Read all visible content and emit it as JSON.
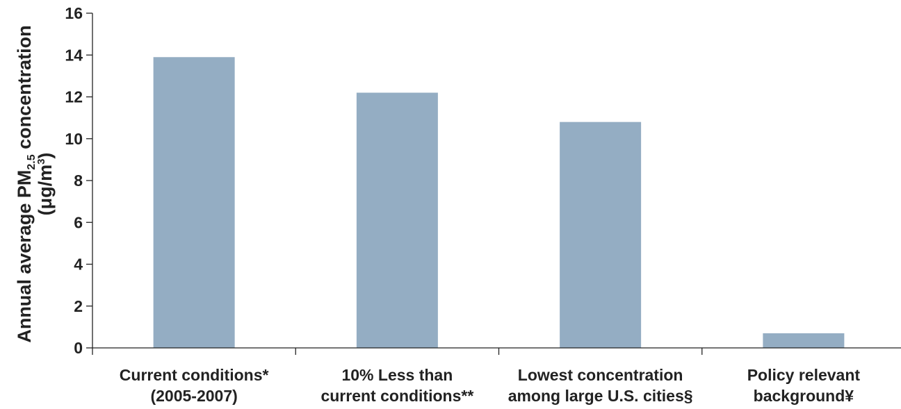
{
  "chart_data": {
    "type": "bar",
    "categories": [
      [
        "Current conditions*",
        "(2005-2007)"
      ],
      [
        "10% Less than",
        "current conditions**"
      ],
      [
        "Lowest concentration",
        "among large U.S. cities§"
      ],
      [
        "Policy relevant",
        "background¥"
      ]
    ],
    "values": [
      13.9,
      12.2,
      10.8,
      0.7
    ],
    "ylabel_line1": "Annual average PM",
    "ylabel_sub": "2.5",
    "ylabel_line1_tail": " concentration",
    "ylabel_line2": "(μg/m",
    "ylabel_sup": "3",
    "ylabel_line2_tail": ")",
    "ylim": [
      0,
      16
    ],
    "yticks": [
      0,
      2,
      4,
      6,
      8,
      10,
      12,
      14,
      16
    ],
    "bar_color": "#94adc3",
    "axis_color": "#222222"
  }
}
